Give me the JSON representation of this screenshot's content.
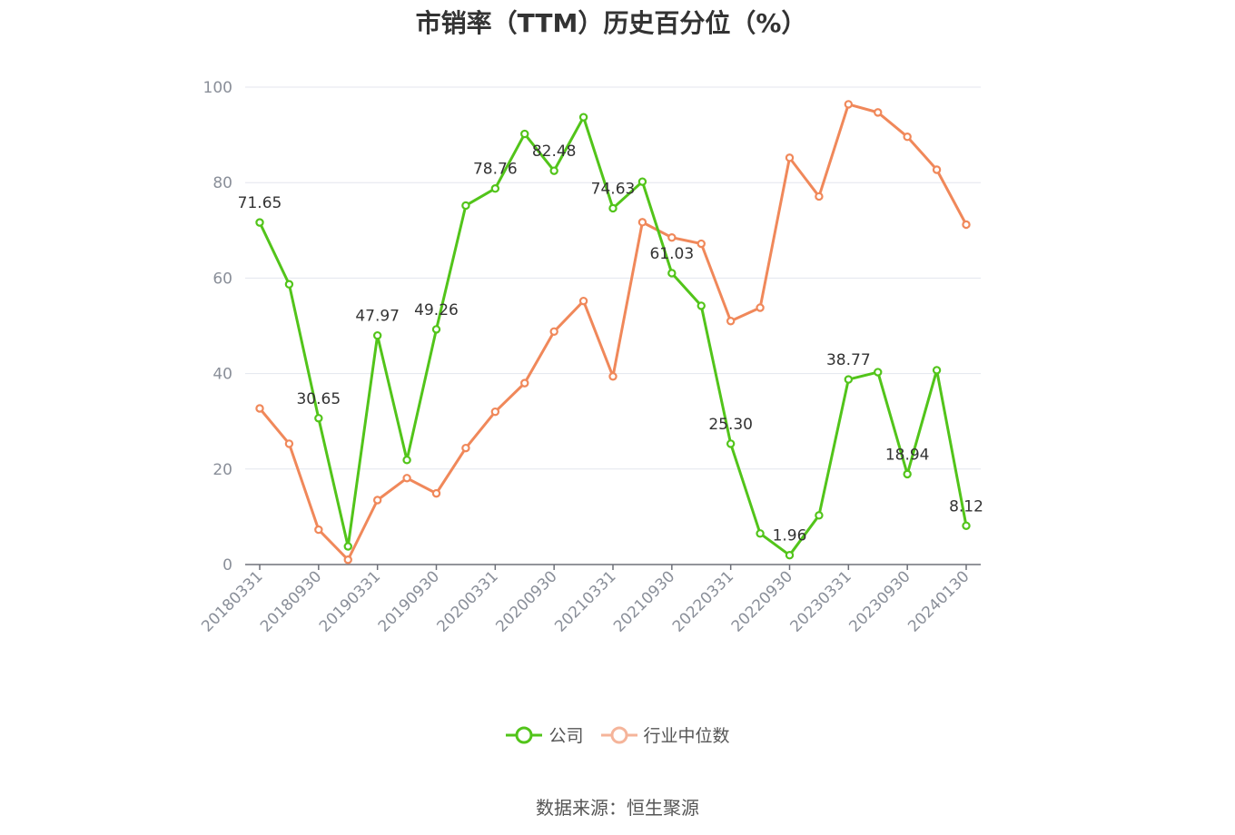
{
  "chart_data": {
    "type": "line",
    "title": "市销率（TTM）历史百分位（%）",
    "xlabel": "",
    "ylabel": "",
    "ylim": [
      0,
      100
    ],
    "yticks": [
      0,
      20,
      40,
      60,
      80,
      100
    ],
    "grid": true,
    "legend_placement": "bottom-center",
    "x": [
      "20180331",
      "20180630",
      "20180930",
      "20181231",
      "20190331",
      "20190630",
      "20190930",
      "20191231",
      "20200331",
      "20200630",
      "20200930",
      "20201231",
      "20210331",
      "20210630",
      "20210930",
      "20211231",
      "20220331",
      "20220630",
      "20220930",
      "20221231",
      "20230331",
      "20230630",
      "20230930",
      "20231231",
      "20240130"
    ],
    "x_tick_labels": [
      "20180331",
      "20180930",
      "20190331",
      "20190930",
      "20200331",
      "20200930",
      "20210331",
      "20210930",
      "20220331",
      "20220930",
      "20230331",
      "20230930",
      "20240130"
    ],
    "series": [
      {
        "name": "公司",
        "color": "#52c41a",
        "values": [
          71.65,
          58.7,
          30.65,
          3.8,
          47.97,
          21.9,
          49.26,
          75.2,
          78.76,
          90.2,
          82.48,
          93.7,
          74.63,
          80.2,
          61.03,
          54.2,
          25.3,
          6.5,
          1.96,
          10.3,
          38.77,
          40.3,
          18.94,
          40.7,
          8.12
        ],
        "labels": {
          "0": "71.65",
          "2": "30.65",
          "4": "47.97",
          "6": "49.26",
          "8": "78.76",
          "10": "82.48",
          "12": "74.63",
          "14": "61.03",
          "16": "25.30",
          "18": "1.96",
          "20": "38.77",
          "22": "18.94",
          "24": "8.12"
        }
      },
      {
        "name": "行业中位数",
        "color": "#f0885a",
        "values": [
          32.7,
          25.3,
          7.3,
          1.0,
          13.5,
          18.1,
          14.9,
          24.4,
          32.0,
          38.0,
          48.8,
          55.2,
          39.4,
          71.7,
          68.5,
          67.2,
          51.0,
          53.8,
          85.2,
          77.1,
          96.4,
          94.7,
          89.6,
          82.7,
          71.2
        ]
      }
    ]
  },
  "source_text": "数据来源：恒生聚源"
}
